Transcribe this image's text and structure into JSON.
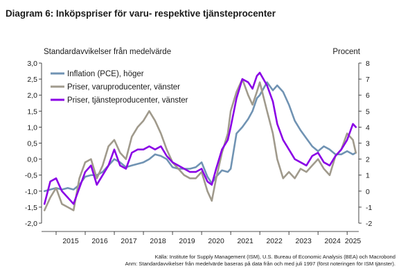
{
  "title": "Diagram 6: Inköpspriser för varu- respektive tjänsteprocenter",
  "source_line": "Källa: Institute for Supply Management (ISM), U.S. Bureau of Economic Analysis (BEA)  och Macrobond",
  "note_line": "Anm: Standardavvikelser från medelvärde baseras på data från och med juli 1997 (först noteringen för         ISM tjänster).",
  "chart_data": {
    "type": "line",
    "ylabel_left": "Standardavvikelser från medelvärde",
    "ylabel_right": "Procent",
    "xlim": [
      2014.5,
      2025.4
    ],
    "ylim_left": [
      -2.0,
      3.0
    ],
    "ylim_right": [
      -2,
      8
    ],
    "left_ticks": [
      "-2,0",
      "-1,5",
      "-1,0",
      "-0,5",
      "0,0",
      "0,5",
      "1,0",
      "1,5",
      "2,0",
      "2,5",
      "3,0"
    ],
    "right_ticks": [
      "-2",
      "-1",
      "0",
      "1",
      "2",
      "3",
      "4",
      "5",
      "6",
      "7",
      "8"
    ],
    "x_tick_labels": [
      "2015",
      "2016",
      "2017",
      "2018",
      "2019",
      "2020",
      "2021",
      "2022",
      "2023",
      "2024",
      "2025"
    ],
    "grid": false,
    "legend_position": "top-left",
    "series": [
      {
        "name": "Inflation (PCE), höger",
        "axis": "right",
        "color": "#7093b3",
        "points": [
          [
            2014.6,
            0.0
          ],
          [
            2014.8,
            0.1
          ],
          [
            2015.0,
            0.2
          ],
          [
            2015.2,
            0.1
          ],
          [
            2015.4,
            0.2
          ],
          [
            2015.6,
            0.1
          ],
          [
            2015.8,
            0.4
          ],
          [
            2016.0,
            0.9
          ],
          [
            2016.2,
            1.0
          ],
          [
            2016.4,
            1.0
          ],
          [
            2016.6,
            1.2
          ],
          [
            2016.8,
            1.6
          ],
          [
            2017.0,
            2.0
          ],
          [
            2017.2,
            1.8
          ],
          [
            2017.4,
            1.5
          ],
          [
            2017.6,
            1.6
          ],
          [
            2017.8,
            1.7
          ],
          [
            2018.0,
            1.8
          ],
          [
            2018.2,
            2.0
          ],
          [
            2018.4,
            2.3
          ],
          [
            2018.6,
            2.2
          ],
          [
            2018.8,
            2.0
          ],
          [
            2019.0,
            1.5
          ],
          [
            2019.2,
            1.4
          ],
          [
            2019.4,
            1.4
          ],
          [
            2019.6,
            1.4
          ],
          [
            2019.8,
            1.5
          ],
          [
            2020.0,
            1.8
          ],
          [
            2020.2,
            0.9
          ],
          [
            2020.35,
            0.5
          ],
          [
            2020.5,
            0.9
          ],
          [
            2020.7,
            1.3
          ],
          [
            2020.9,
            1.2
          ],
          [
            2021.0,
            1.4
          ],
          [
            2021.2,
            3.6
          ],
          [
            2021.4,
            4.0
          ],
          [
            2021.6,
            4.5
          ],
          [
            2021.75,
            5.0
          ],
          [
            2021.9,
            5.8
          ],
          [
            2022.0,
            6.0
          ],
          [
            2022.25,
            6.8
          ],
          [
            2022.45,
            6.3
          ],
          [
            2022.6,
            6.6
          ],
          [
            2022.8,
            6.2
          ],
          [
            2023.0,
            5.4
          ],
          [
            2023.2,
            4.4
          ],
          [
            2023.4,
            3.8
          ],
          [
            2023.6,
            3.3
          ],
          [
            2023.8,
            2.8
          ],
          [
            2024.0,
            2.5
          ],
          [
            2024.2,
            2.8
          ],
          [
            2024.4,
            2.6
          ],
          [
            2024.6,
            2.3
          ],
          [
            2024.8,
            2.3
          ],
          [
            2025.0,
            2.5
          ],
          [
            2025.2,
            2.3
          ],
          [
            2025.3,
            2.4
          ]
        ]
      },
      {
        "name": "Priser, varuproducenter, vänster",
        "axis": "left",
        "color": "#a09a8c",
        "points": [
          [
            2014.6,
            -1.6
          ],
          [
            2014.8,
            -1.2
          ],
          [
            2015.0,
            -0.9
          ],
          [
            2015.2,
            -1.4
          ],
          [
            2015.4,
            -1.5
          ],
          [
            2015.6,
            -1.6
          ],
          [
            2015.8,
            -0.6
          ],
          [
            2016.0,
            -0.1
          ],
          [
            2016.2,
            0.0
          ],
          [
            2016.4,
            -0.6
          ],
          [
            2016.6,
            -0.2
          ],
          [
            2016.8,
            0.4
          ],
          [
            2017.0,
            0.6
          ],
          [
            2017.2,
            0.2
          ],
          [
            2017.4,
            0.0
          ],
          [
            2017.6,
            0.7
          ],
          [
            2017.8,
            1.0
          ],
          [
            2018.0,
            1.2
          ],
          [
            2018.2,
            1.5
          ],
          [
            2018.4,
            1.2
          ],
          [
            2018.6,
            0.8
          ],
          [
            2018.8,
            0.3
          ],
          [
            2019.0,
            -0.1
          ],
          [
            2019.2,
            -0.3
          ],
          [
            2019.4,
            -0.5
          ],
          [
            2019.6,
            -0.6
          ],
          [
            2019.8,
            -0.6
          ],
          [
            2020.0,
            -0.4
          ],
          [
            2020.2,
            -1.0
          ],
          [
            2020.35,
            -1.3
          ],
          [
            2020.5,
            -0.6
          ],
          [
            2020.7,
            0.2
          ],
          [
            2020.9,
            0.8
          ],
          [
            2021.0,
            1.5
          ],
          [
            2021.2,
            2.1
          ],
          [
            2021.4,
            2.5
          ],
          [
            2021.6,
            2.0
          ],
          [
            2021.75,
            1.7
          ],
          [
            2021.9,
            2.1
          ],
          [
            2022.0,
            2.4
          ],
          [
            2022.25,
            1.5
          ],
          [
            2022.45,
            0.8
          ],
          [
            2022.6,
            0.0
          ],
          [
            2022.8,
            -0.6
          ],
          [
            2023.0,
            -0.4
          ],
          [
            2023.2,
            -0.6
          ],
          [
            2023.4,
            -0.3
          ],
          [
            2023.6,
            -0.4
          ],
          [
            2023.8,
            -0.2
          ],
          [
            2024.0,
            0.0
          ],
          [
            2024.2,
            -0.3
          ],
          [
            2024.4,
            -0.5
          ],
          [
            2024.6,
            0.1
          ],
          [
            2024.8,
            0.3
          ],
          [
            2025.0,
            0.8
          ],
          [
            2025.2,
            0.6
          ],
          [
            2025.3,
            0.2
          ]
        ]
      },
      {
        "name": "Priser, tjänsteproducenter, vänster",
        "axis": "left",
        "color": "#8a00e6",
        "points": [
          [
            2014.6,
            -1.4
          ],
          [
            2014.8,
            -0.7
          ],
          [
            2015.0,
            -0.6
          ],
          [
            2015.2,
            -1.0
          ],
          [
            2015.4,
            -1.2
          ],
          [
            2015.6,
            -1.4
          ],
          [
            2015.8,
            -0.9
          ],
          [
            2016.0,
            -0.4
          ],
          [
            2016.2,
            -0.2
          ],
          [
            2016.4,
            -0.8
          ],
          [
            2016.6,
            -0.5
          ],
          [
            2016.8,
            -0.2
          ],
          [
            2017.0,
            0.3
          ],
          [
            2017.2,
            -0.2
          ],
          [
            2017.4,
            -0.3
          ],
          [
            2017.6,
            0.2
          ],
          [
            2017.8,
            0.3
          ],
          [
            2018.0,
            0.3
          ],
          [
            2018.2,
            0.4
          ],
          [
            2018.4,
            0.3
          ],
          [
            2018.6,
            0.4
          ],
          [
            2018.8,
            0.1
          ],
          [
            2019.0,
            -0.1
          ],
          [
            2019.2,
            -0.2
          ],
          [
            2019.4,
            -0.3
          ],
          [
            2019.6,
            -0.4
          ],
          [
            2019.8,
            -0.4
          ],
          [
            2020.0,
            -0.3
          ],
          [
            2020.2,
            -0.7
          ],
          [
            2020.35,
            -0.8
          ],
          [
            2020.5,
            -0.3
          ],
          [
            2020.7,
            0.3
          ],
          [
            2020.9,
            0.6
          ],
          [
            2021.0,
            1.0
          ],
          [
            2021.2,
            1.9
          ],
          [
            2021.4,
            2.5
          ],
          [
            2021.6,
            2.4
          ],
          [
            2021.75,
            2.2
          ],
          [
            2021.9,
            2.6
          ],
          [
            2022.0,
            2.7
          ],
          [
            2022.25,
            2.3
          ],
          [
            2022.45,
            1.8
          ],
          [
            2022.6,
            1.1
          ],
          [
            2022.8,
            0.6
          ],
          [
            2023.0,
            0.3
          ],
          [
            2023.2,
            0.0
          ],
          [
            2023.4,
            -0.1
          ],
          [
            2023.6,
            -0.2
          ],
          [
            2023.8,
            0.1
          ],
          [
            2024.0,
            0.2
          ],
          [
            2024.2,
            -0.1
          ],
          [
            2024.4,
            -0.2
          ],
          [
            2024.6,
            0.1
          ],
          [
            2024.8,
            0.3
          ],
          [
            2025.0,
            0.6
          ],
          [
            2025.2,
            1.1
          ],
          [
            2025.3,
            1.0
          ]
        ]
      }
    ]
  }
}
